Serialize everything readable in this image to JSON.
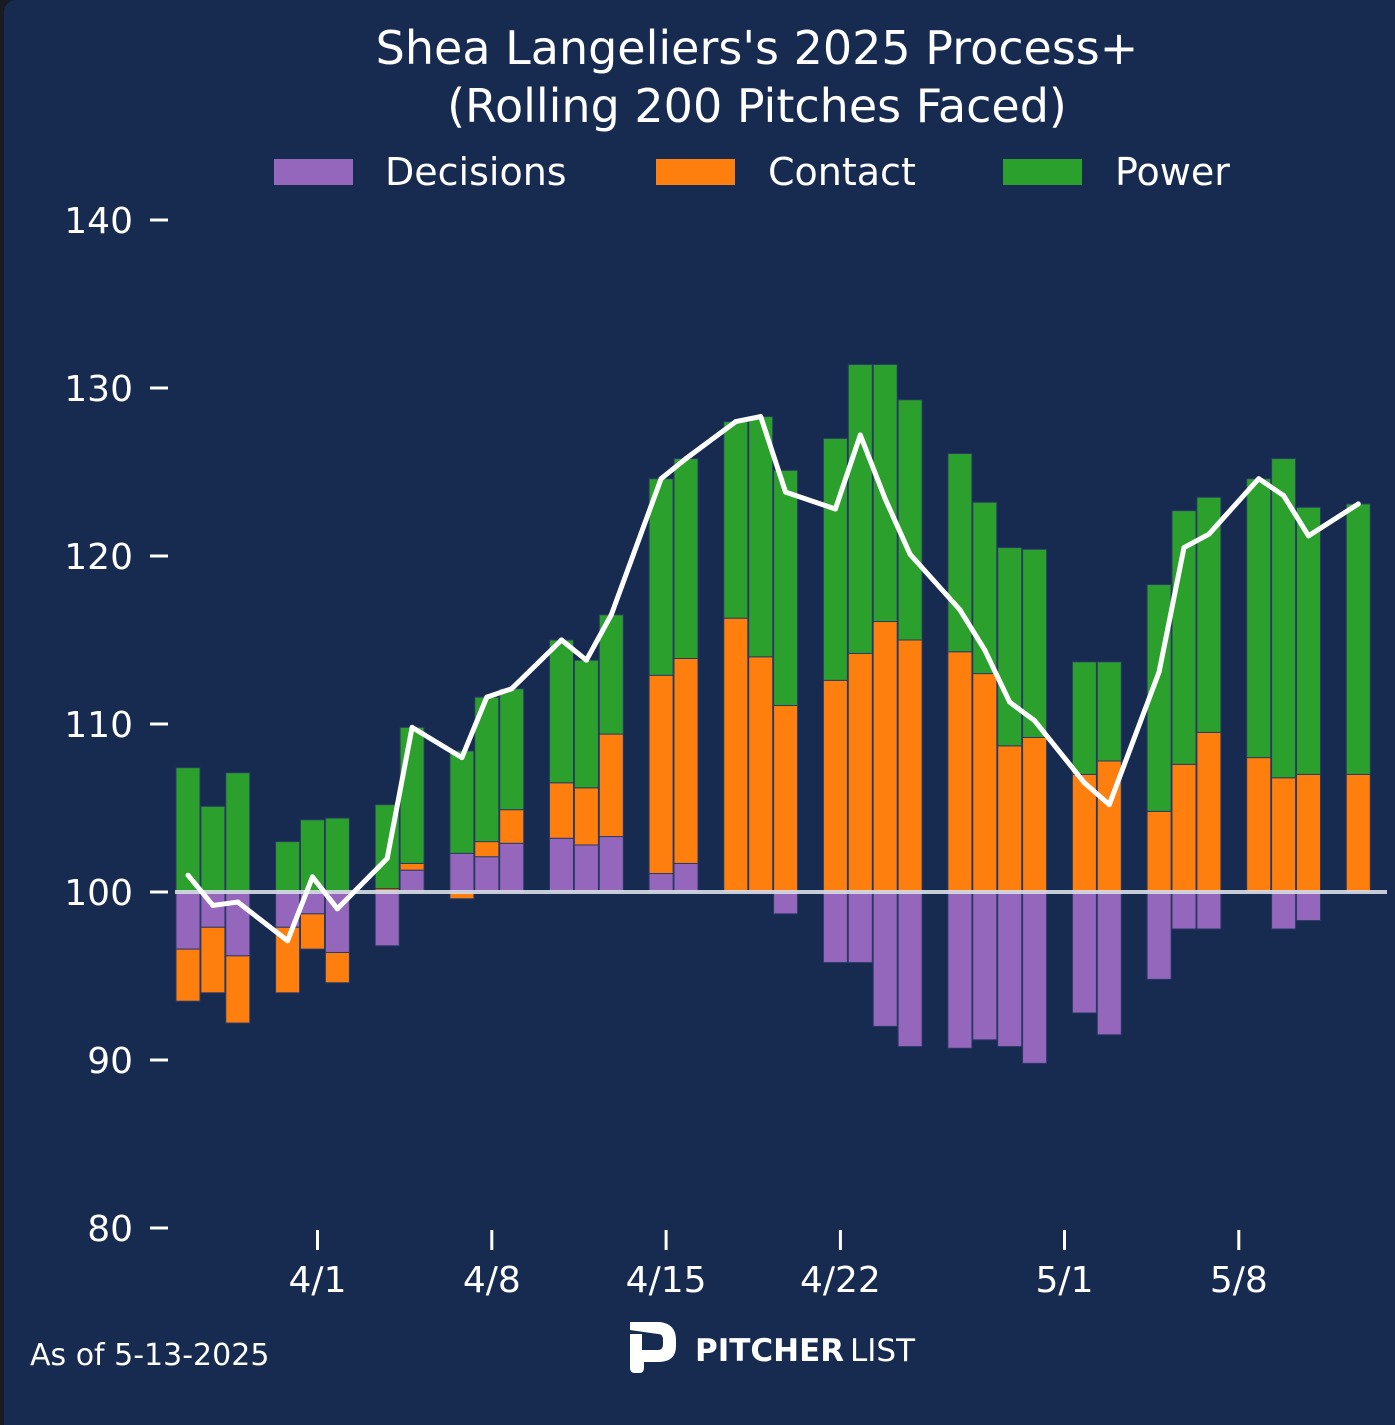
{
  "chart_data": {
    "type": "bar",
    "stacked": true,
    "title": "Shea Langeliers's 2025 Process+",
    "subtitle": "(Rolling 200 Pitches Faced)",
    "xlabel": "",
    "ylabel": "",
    "ylim": [
      80,
      140
    ],
    "baseline": 100,
    "yticks": [
      80,
      90,
      100,
      110,
      120,
      130,
      140
    ],
    "xticks": [
      {
        "label": "4/1",
        "date": "4/1"
      },
      {
        "label": "4/8",
        "date": "4/8"
      },
      {
        "label": "4/15",
        "date": "4/15"
      },
      {
        "label": "4/22",
        "date": "4/22"
      },
      {
        "label": "5/1",
        "date": "5/1"
      },
      {
        "label": "5/8",
        "date": "5/8"
      }
    ],
    "x_start_date": "3/27",
    "legend_position": "top-center",
    "legend": [
      {
        "name": "Decisions",
        "color": "#9467bd"
      },
      {
        "name": "Contact",
        "color": "#ff7f0e"
      },
      {
        "name": "Power",
        "color": "#2ca02c"
      }
    ],
    "categories": [
      "3/27",
      "3/28",
      "3/29",
      "3/31",
      "4/1",
      "4/2",
      "4/4",
      "4/5",
      "4/7",
      "4/8",
      "4/9",
      "4/11",
      "4/12",
      "4/13",
      "4/15",
      "4/16",
      "4/18",
      "4/19",
      "4/20",
      "4/22",
      "4/23",
      "4/24",
      "4/25",
      "4/27",
      "4/28",
      "4/29",
      "4/30",
      "5/2",
      "5/3",
      "5/5",
      "5/6",
      "5/7",
      "5/9",
      "5/10",
      "5/11",
      "5/13"
    ],
    "day_offsets": [
      0,
      1,
      2,
      4,
      5,
      6,
      8,
      9,
      11,
      12,
      13,
      15,
      16,
      17,
      19,
      20,
      22,
      23,
      24,
      26,
      27,
      28,
      29,
      31,
      32,
      33,
      34,
      36,
      37,
      39,
      40,
      41,
      43,
      44,
      45,
      47
    ],
    "series": [
      {
        "name": "Decisions",
        "color": "#9467bd",
        "values": [
          -3.4,
          -2.1,
          -3.8,
          -2.1,
          -1.3,
          -3.6,
          -3.2,
          1.3,
          2.3,
          2.1,
          2.9,
          3.2,
          2.8,
          3.3,
          1.1,
          1.7,
          0.0,
          -0.1,
          -1.3,
          -4.2,
          -4.2,
          -8.0,
          -9.2,
          -9.3,
          -8.8,
          -9.2,
          -10.2,
          -7.2,
          -8.5,
          -5.2,
          -2.2,
          -2.2,
          0.0,
          -2.2,
          -1.7,
          0.0
        ]
      },
      {
        "name": "Contact",
        "color": "#ff7f0e",
        "values": [
          -3.1,
          -3.9,
          -4.0,
          -3.9,
          -2.1,
          -1.8,
          0.2,
          0.4,
          -0.4,
          0.9,
          2.0,
          3.3,
          3.4,
          6.1,
          11.8,
          12.2,
          16.3,
          14.0,
          11.1,
          12.6,
          14.2,
          16.1,
          15.0,
          14.3,
          13.0,
          8.7,
          9.2,
          7.0,
          7.8,
          4.8,
          7.6,
          9.5,
          8.0,
          6.8,
          7.0,
          7.0
        ]
      },
      {
        "name": "Power",
        "color": "#2ca02c",
        "values": [
          7.4,
          5.1,
          7.1,
          3.0,
          4.3,
          4.4,
          5.0,
          8.1,
          6.1,
          8.6,
          7.2,
          8.5,
          7.6,
          7.1,
          11.7,
          11.9,
          11.7,
          14.3,
          14.0,
          14.4,
          17.2,
          15.3,
          14.3,
          11.8,
          10.2,
          11.8,
          11.2,
          6.7,
          5.9,
          13.5,
          15.1,
          14.0,
          16.6,
          19.0,
          15.9,
          16.1
        ]
      },
      {
        "name": "Process+",
        "type": "line",
        "color": "#ffffff",
        "values": [
          101.0,
          99.2,
          99.4,
          97.1,
          100.9,
          99.0,
          102.0,
          109.8,
          108.0,
          111.6,
          112.1,
          115.0,
          113.8,
          116.5,
          124.6,
          125.8,
          128.0,
          128.3,
          123.8,
          122.8,
          127.2,
          123.4,
          120.1,
          116.8,
          114.4,
          111.3,
          110.2,
          106.5,
          105.2,
          113.1,
          120.5,
          121.3,
          124.6,
          123.6,
          121.2,
          123.1
        ]
      }
    ]
  },
  "footer": {
    "as_of": "As of 5-13-2025",
    "logo_bold": "PITCHER",
    "logo_light": "LIST"
  }
}
